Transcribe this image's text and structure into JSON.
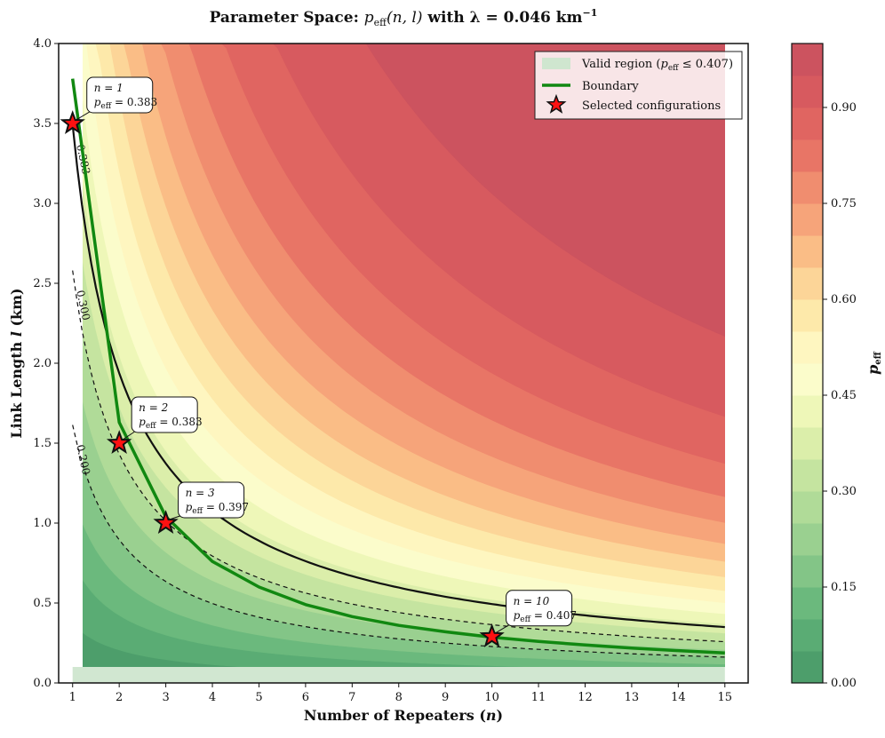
{
  "chart_data": {
    "type": "heatmap",
    "title": "Parameter Space: p_eff(n, l) with λ = 0.046 km⁻¹",
    "title_parts": {
      "prefix": "Parameter Space: ",
      "p": "p",
      "p_sub": "eff",
      "args": "(n, l)",
      "mid": " with ",
      "lambda_expr": "λ = 0.046 km",
      "exp": "−1"
    },
    "lambda": 0.046,
    "xlabel": "Number of Repeaters (n)",
    "xlabel_parts": {
      "text": "Number of Repeaters (",
      "var": "n",
      "close": ")"
    },
    "ylabel": "Link Length l (km)",
    "ylabel_parts": {
      "text": "Link Length ",
      "var": "l",
      "unit": " (km)"
    },
    "xlim": [
      0.7,
      15.5
    ],
    "ylim": [
      0,
      4.0
    ],
    "data_x_range": [
      1,
      15
    ],
    "data_y_range": [
      0.1,
      4.0
    ],
    "x_ticks": [
      1,
      2,
      3,
      4,
      5,
      6,
      7,
      8,
      9,
      10,
      11,
      12,
      13,
      14,
      15
    ],
    "x_tick_labels": [
      "1",
      "2",
      "3",
      "4",
      "5",
      "6",
      "7",
      "8",
      "9",
      "10",
      "11",
      "12",
      "13",
      "14",
      "15"
    ],
    "y_ticks": [
      0.0,
      0.5,
      1.0,
      1.5,
      2.0,
      2.5,
      3.0,
      3.5,
      4.0
    ],
    "y_tick_labels": [
      "0.0",
      "0.5",
      "1.0",
      "1.5",
      "2.0",
      "2.5",
      "3.0",
      "3.5",
      "4.0"
    ],
    "fill_levels": [
      0,
      0.05,
      0.1,
      0.15,
      0.2,
      0.25,
      0.3,
      0.35,
      0.4,
      0.45,
      0.5,
      0.55,
      0.6,
      0.65,
      0.7,
      0.75,
      0.8,
      0.85,
      0.9,
      0.95,
      1.0
    ],
    "level_colors": [
      "#4d9e6b",
      "#5aac74",
      "#6bb97d",
      "#83c587",
      "#9ad090",
      "#b0db98",
      "#c5e4a0",
      "#dbeeaa",
      "#eef7b8",
      "#fbfccb",
      "#fef6c0",
      "#fde9aa",
      "#fcd598",
      "#fabd86",
      "#f6a47a",
      "#f08d6f",
      "#e87566",
      "#e06561",
      "#d75a5f",
      "#cc535f"
    ],
    "dashed_contours": [
      {
        "value": 0.2,
        "label": "0.200"
      },
      {
        "value": 0.3,
        "label": "0.300"
      },
      {
        "value": 0.383,
        "label": "0.383"
      }
    ],
    "boundary_value": 0.407,
    "boundary_points": [
      [
        1,
        3.78
      ],
      [
        2,
        1.63
      ],
      [
        3,
        1.04
      ],
      [
        4,
        0.76
      ],
      [
        5,
        0.6
      ],
      [
        6,
        0.49
      ],
      [
        7,
        0.415
      ],
      [
        8,
        0.36
      ],
      [
        9,
        0.32
      ],
      [
        10,
        0.286
      ],
      [
        11,
        0.26
      ],
      [
        12,
        0.237
      ],
      [
        13,
        0.218
      ],
      [
        14,
        0.202
      ],
      [
        15,
        0.188
      ]
    ],
    "valid_band_y": [
      0.0,
      0.1
    ],
    "legend": {
      "position": "top-right",
      "entries": [
        {
          "label": "Valid region (p_eff ≤ 0.407)",
          "prefix": "Valid region (",
          "p": "p",
          "sub": "eff",
          "suffix": " ≤ 0.407)",
          "color": "#cfe6cf",
          "kind": "patch"
        },
        {
          "label": "Boundary",
          "color": "#118811",
          "kind": "line"
        },
        {
          "label": "Selected configurations",
          "color": "#ff1111",
          "kind": "star"
        }
      ]
    },
    "selected_configurations": [
      {
        "n": 1,
        "l": 3.5,
        "p_eff": 0.383,
        "n_label": "n = 1",
        "p_label": "p",
        "p_sub": "eff",
        "p_value": " = 0.383"
      },
      {
        "n": 2,
        "l": 1.5,
        "p_eff": 0.383,
        "n_label": "n = 2",
        "p_label": "p",
        "p_sub": "eff",
        "p_value": " = 0.383"
      },
      {
        "n": 3,
        "l": 1.0,
        "p_eff": 0.397,
        "n_label": "n = 3",
        "p_label": "p",
        "p_sub": "eff",
        "p_value": " = 0.397"
      },
      {
        "n": 10,
        "l": 0.29,
        "p_eff": 0.407,
        "n_label": "n = 10",
        "p_label": "p",
        "p_sub": "eff",
        "p_value": " = 0.407"
      }
    ],
    "colorbar": {
      "label": "p_eff",
      "label_p": "p",
      "label_sub": "eff",
      "range": [
        0,
        1.0
      ],
      "ticks": [
        0.0,
        0.15,
        0.3,
        0.45,
        0.6,
        0.75,
        0.9
      ],
      "tick_labels": [
        "0.00",
        "0.15",
        "0.30",
        "0.45",
        "0.60",
        "0.75",
        "0.90"
      ]
    }
  }
}
